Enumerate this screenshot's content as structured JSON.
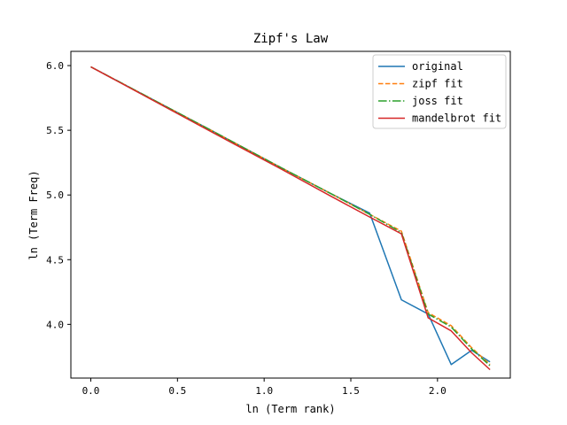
{
  "chart_data": {
    "type": "line",
    "title": "Zipf's Law",
    "xlabel": "ln (Term rank)",
    "ylabel": "ln (Term Freq)",
    "xlim": [
      -0.115,
      2.42
    ],
    "ylim": [
      3.585,
      6.11
    ],
    "xticks": [
      "0.0",
      "0.5",
      "1.0",
      "1.5",
      "2.0"
    ],
    "xtick_values": [
      0.0,
      0.5,
      1.0,
      1.5,
      2.0
    ],
    "yticks": [
      "4.0",
      "4.5",
      "5.0",
      "5.5",
      "6.0"
    ],
    "ytick_values": [
      4.0,
      4.5,
      5.0,
      5.5,
      6.0
    ],
    "grid": false,
    "legend_position": "upper right",
    "x": [
      0.0,
      0.693,
      1.099,
      1.386,
      1.609,
      1.792,
      1.946,
      2.079,
      2.197,
      2.303
    ],
    "series": [
      {
        "name": "original",
        "color": "#1f77b4",
        "style": "solid",
        "values": [
          5.99,
          5.5,
          5.21,
          5.01,
          4.86,
          4.19,
          4.08,
          3.69,
          3.8,
          3.71
        ]
      },
      {
        "name": "zipf fit",
        "color": "#ff7f0e",
        "style": "dashed",
        "values": [
          5.99,
          5.5,
          5.21,
          5.01,
          4.85,
          4.72,
          4.09,
          3.99,
          3.82,
          3.69
        ]
      },
      {
        "name": "joss fit",
        "color": "#2ca02c",
        "style": "dashdot",
        "values": [
          5.99,
          5.5,
          5.21,
          5.01,
          4.85,
          4.71,
          4.08,
          3.98,
          3.81,
          3.68
        ]
      },
      {
        "name": "mandelbrot fit",
        "color": "#d62728",
        "style": "solid",
        "values": [
          5.99,
          5.49,
          5.2,
          4.99,
          4.83,
          4.7,
          4.05,
          3.95,
          3.78,
          3.65
        ]
      }
    ]
  }
}
